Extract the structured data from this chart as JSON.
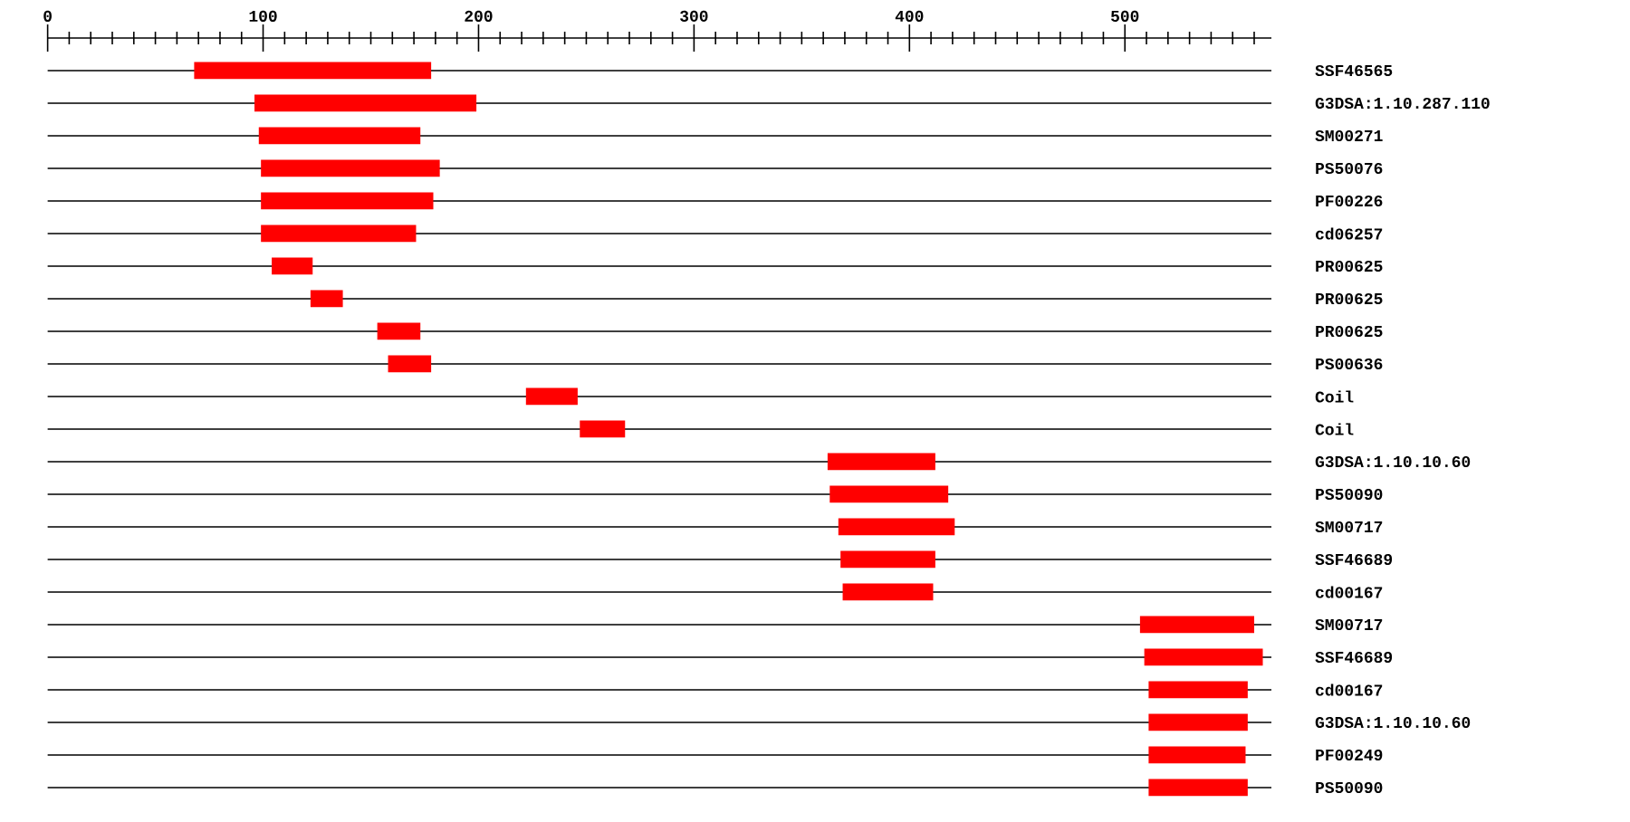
{
  "chart_data": {
    "type": "bar",
    "orientation": "horizontal",
    "color": "#ff0000",
    "grid": "y",
    "categories": [
      "SSF46565",
      "G3DSA:1.10.287.110",
      "SM00271",
      "PS50076",
      "PF00226",
      "cd06257",
      "PR00625",
      "PR00625",
      "PR00625",
      "PS00636",
      "Coil",
      "Coil",
      "G3DSA:1.10.10.60",
      "PS50090",
      "SM00717",
      "SSF46689",
      "cd00167",
      "SM00717",
      "SSF46689",
      "cd00167",
      "G3DSA:1.10.10.60",
      "PF00249",
      "PS50090"
    ],
    "base": [
      68,
      96,
      98,
      99,
      99,
      99,
      104,
      122,
      153,
      158,
      222,
      247,
      362,
      363,
      367,
      368,
      369,
      507,
      509,
      511,
      511,
      511,
      511
    ],
    "values": [
      110,
      103,
      75,
      83,
      80,
      72,
      19,
      15,
      20,
      20,
      24,
      21,
      50,
      55,
      54,
      44,
      42,
      53,
      55,
      46,
      46,
      45,
      46
    ],
    "xlim": [
      0,
      568
    ],
    "xticks": [
      0,
      {
        "value": 10,
        "label": null
      },
      {
        "value": 20,
        "label": null
      },
      {
        "value": 30,
        "label": null
      },
      {
        "value": 40,
        "label": null
      },
      {
        "value": 50,
        "label": null
      },
      {
        "value": 60,
        "label": null
      },
      {
        "value": 70,
        "label": null
      },
      {
        "value": 80,
        "label": null
      },
      {
        "value": 90,
        "label": null
      },
      100,
      {
        "value": 110,
        "label": null
      },
      {
        "value": 120,
        "label": null
      },
      {
        "value": 130,
        "label": null
      },
      {
        "value": 140,
        "label": null
      },
      {
        "value": 150,
        "label": null
      },
      {
        "value": 160,
        "label": null
      },
      {
        "value": 170,
        "label": null
      },
      {
        "value": 180,
        "label": null
      },
      {
        "value": 190,
        "label": null
      },
      200,
      {
        "value": 210,
        "label": null
      },
      {
        "value": 220,
        "label": null
      },
      {
        "value": 230,
        "label": null
      },
      {
        "value": 240,
        "label": null
      },
      {
        "value": 250,
        "label": null
      },
      {
        "value": 260,
        "label": null
      },
      {
        "value": 270,
        "label": null
      },
      {
        "value": 280,
        "label": null
      },
      {
        "value": 290,
        "label": null
      },
      300,
      {
        "value": 310,
        "label": null
      },
      {
        "value": 320,
        "label": null
      },
      {
        "value": 330,
        "label": null
      },
      {
        "value": 340,
        "label": null
      },
      {
        "value": 350,
        "label": null
      },
      {
        "value": 360,
        "label": null
      },
      {
        "value": 370,
        "label": null
      },
      {
        "value": 380,
        "label": null
      },
      {
        "value": 390,
        "label": null
      },
      400,
      {
        "value": 410,
        "label": null
      },
      {
        "value": 420,
        "label": null
      },
      {
        "value": 430,
        "label": null
      },
      {
        "value": 440,
        "label": null
      },
      {
        "value": 450,
        "label": null
      },
      {
        "value": 460,
        "label": null
      },
      {
        "value": 470,
        "label": null
      },
      {
        "value": 480,
        "label": null
      },
      {
        "value": 490,
        "label": null
      },
      500,
      {
        "value": 510,
        "label": null
      },
      {
        "value": 520,
        "label": null
      },
      {
        "value": 530,
        "label": null
      },
      {
        "value": 540,
        "label": null
      },
      {
        "value": 550,
        "label": null
      },
      {
        "value": 560,
        "label": null
      }
    ]
  }
}
